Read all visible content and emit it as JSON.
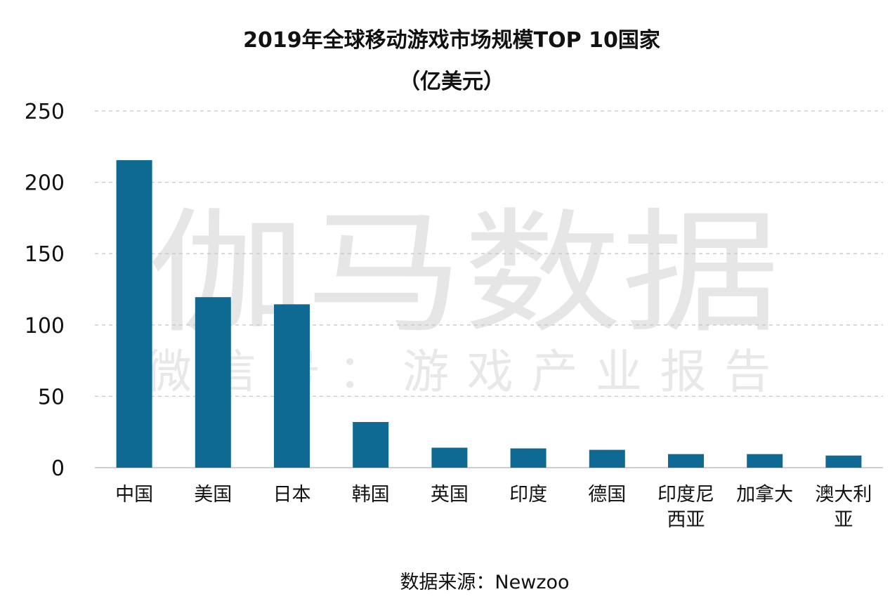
{
  "chart_data": {
    "type": "bar",
    "title": "2019年全球移动游戏市场规模TOP 10国家",
    "subtitle": "（亿美元）",
    "categories": [
      "中国",
      "美国",
      "日本",
      "韩国",
      "英国",
      "印度",
      "德国",
      "印度尼西亚",
      "加拿大",
      "澳大利亚"
    ],
    "category_lines": [
      [
        "中国"
      ],
      [
        "美国"
      ],
      [
        "日本"
      ],
      [
        "韩国"
      ],
      [
        "英国"
      ],
      [
        "印度"
      ],
      [
        "德国"
      ],
      [
        "印度尼",
        "西亚"
      ],
      [
        "加拿大"
      ],
      [
        "澳大利",
        "亚"
      ]
    ],
    "values": [
      215.5,
      119.5,
      114.5,
      32,
      14,
      13.5,
      12.5,
      9.5,
      9.5,
      8.5
    ],
    "ylim": [
      0,
      250
    ],
    "yticks": [
      "0",
      "50",
      "100",
      "150",
      "200",
      "250"
    ],
    "xlabel": "",
    "ylabel": "",
    "grid": true,
    "legend": "none",
    "bar_color": "#0e6a93"
  },
  "source": "数据来源：Newzoo",
  "watermark": {
    "line1": "伽马数据",
    "line2": "微信号：游戏产业报告"
  }
}
